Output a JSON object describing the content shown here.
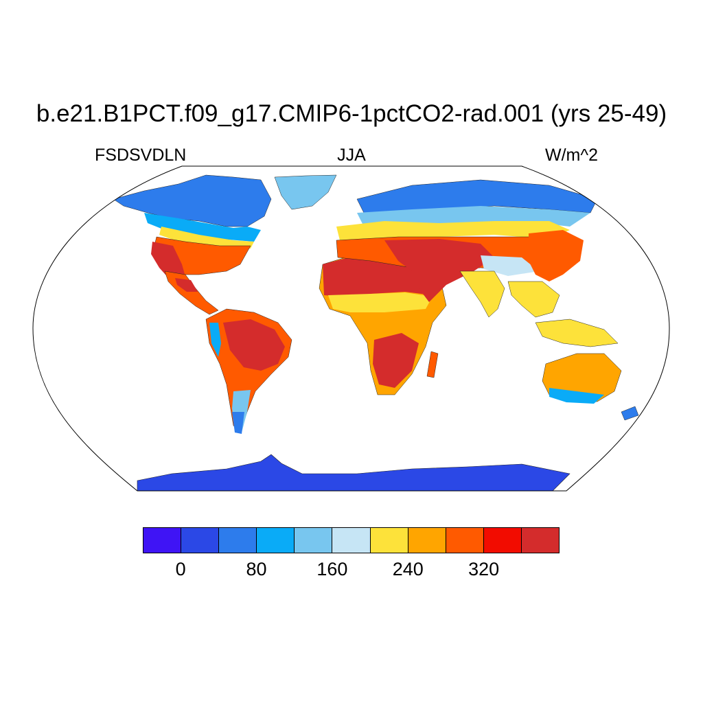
{
  "title": "b.e21.B1PCT.f09_g17.CMIP6-1pctCO2-rad.001 (yrs 25-49)",
  "left_label": "FSDSVDLN",
  "center_label": "JJA",
  "right_label": "W/m^2",
  "colorbar": {
    "colors": [
      "#3f14f5",
      "#2b48e6",
      "#2d7cec",
      "#0aabf7",
      "#78c6ef",
      "#c6e5f5",
      "#fde23a",
      "#ffa500",
      "#ff5a00",
      "#f20c00",
      "#d42c2c"
    ],
    "tick_labels": [
      "0",
      "80",
      "160",
      "240",
      "320"
    ]
  },
  "map": {
    "projection": "Robinson",
    "ocean_color": "#ffffff",
    "regions": [
      {
        "name": "antarctica",
        "color": "#2b48e6"
      },
      {
        "name": "arctic-north-america",
        "color": "#2d7cec"
      },
      {
        "name": "greenland",
        "color": "#78c6ef"
      },
      {
        "name": "north-eurasia",
        "color": "#2d7cec"
      },
      {
        "name": "usa",
        "color": "#ff5a00"
      },
      {
        "name": "mexico",
        "color": "#d42c2c"
      },
      {
        "name": "sahara",
        "color": "#d42c2c"
      },
      {
        "name": "middle-east",
        "color": "#d42c2c"
      },
      {
        "name": "central-asia",
        "color": "#ff5a00"
      },
      {
        "name": "south-asia",
        "color": "#fde23a"
      },
      {
        "name": "amazon",
        "color": "#d42c2c"
      },
      {
        "name": "southern-africa",
        "color": "#d42c2c"
      },
      {
        "name": "australia",
        "color": "#ffa500"
      },
      {
        "name": "maritime-continent",
        "color": "#fde23a"
      }
    ]
  }
}
